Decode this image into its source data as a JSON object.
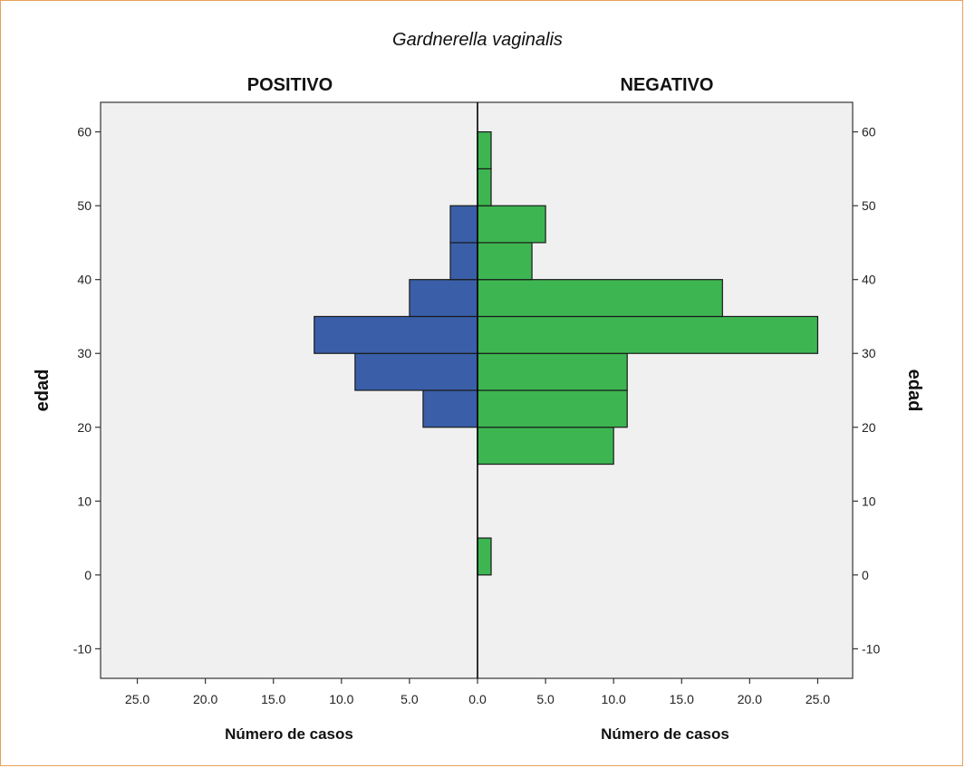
{
  "chart_data": {
    "type": "bar",
    "subtype": "population-pyramid",
    "title": "Gardnerella vaginalis",
    "panels": {
      "left": {
        "name": "POSITIVO",
        "color": "#3a5fa8"
      },
      "right": {
        "name": "NEGATIVO",
        "color": "#3db651"
      }
    },
    "bin_width": 5,
    "bins": [
      {
        "start": 0,
        "end": 5,
        "positivo": 0,
        "negativo": 1
      },
      {
        "start": 5,
        "end": 10,
        "positivo": 0,
        "negativo": 0
      },
      {
        "start": 10,
        "end": 15,
        "positivo": 0,
        "negativo": 0
      },
      {
        "start": 15,
        "end": 20,
        "positivo": 0,
        "negativo": 10
      },
      {
        "start": 20,
        "end": 25,
        "positivo": 4,
        "negativo": 11
      },
      {
        "start": 25,
        "end": 30,
        "positivo": 9,
        "negativo": 11
      },
      {
        "start": 30,
        "end": 35,
        "positivo": 12,
        "negativo": 25
      },
      {
        "start": 35,
        "end": 40,
        "positivo": 5,
        "negativo": 18
      },
      {
        "start": 40,
        "end": 45,
        "positivo": 2,
        "negativo": 4
      },
      {
        "start": 45,
        "end": 50,
        "positivo": 2,
        "negativo": 5
      },
      {
        "start": 50,
        "end": 55,
        "positivo": 0,
        "negativo": 1
      },
      {
        "start": 55,
        "end": 60,
        "positivo": 0,
        "negativo": 1
      }
    ],
    "ylabel": "edad",
    "ylim": [
      -14,
      64
    ],
    "yticks": [
      -10,
      0,
      10,
      20,
      30,
      40,
      50,
      60
    ],
    "xlabel": "Número de casos",
    "xlim": [
      0,
      27.7
    ],
    "xticks": [
      0,
      5,
      10,
      15,
      20,
      25
    ],
    "xtick_labels": [
      "0.0",
      "5.0",
      "10.0",
      "15.0",
      "20.0",
      "25.0"
    ]
  }
}
